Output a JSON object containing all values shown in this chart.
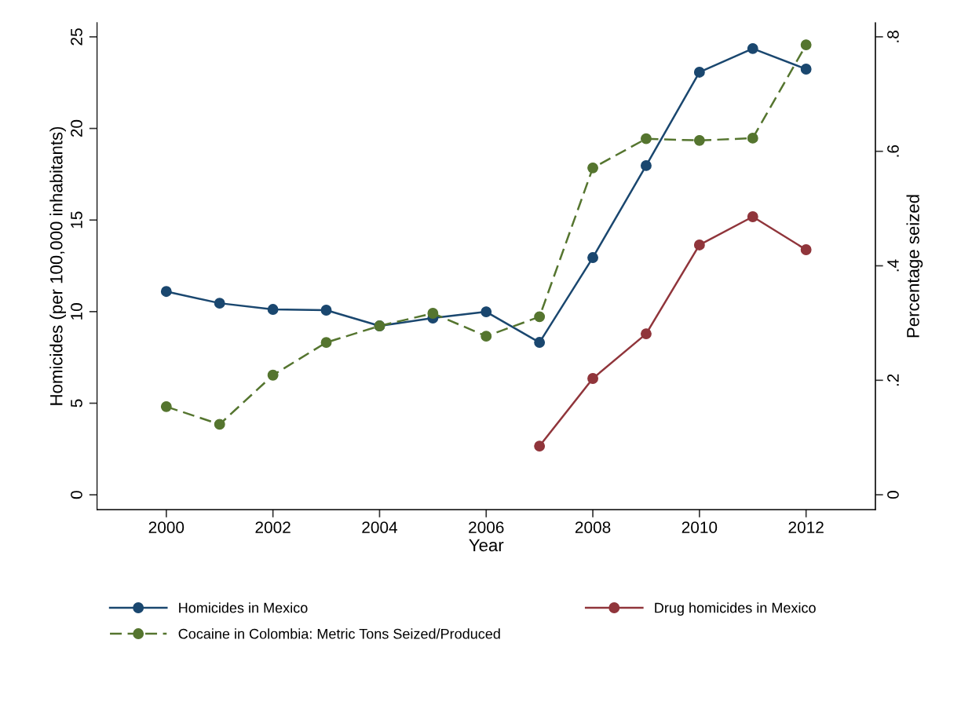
{
  "chart_data": {
    "type": "line",
    "xlabel": "Year",
    "ylabel": "Homicides (per 100,000 inhabitants)",
    "y2label": "Percentage seized",
    "xlim": [
      1998.7,
      2013.3
    ],
    "xticks": [
      2000,
      2002,
      2004,
      2006,
      2008,
      2010,
      2012
    ],
    "ylim": [
      -0.81,
      25.77
    ],
    "yticks": [
      0,
      5,
      10,
      15,
      20,
      25
    ],
    "y2lim": [
      -0.026,
      0.8246
    ],
    "y2ticks": [
      {
        "value": 0,
        "label": "0"
      },
      {
        "value": 0.2,
        "label": ".2"
      },
      {
        "value": 0.4,
        "label": ".4"
      },
      {
        "value": 0.6,
        "label": ".6"
      },
      {
        "value": 0.8,
        "label": ".8"
      }
    ],
    "legend": "bottom",
    "marker": "circle",
    "grid": false,
    "series": [
      {
        "name": "Homicides in Mexico",
        "color": "#1a476f",
        "line_style": "solid",
        "x": [
          2000,
          2001,
          2002,
          2003,
          2004,
          2005,
          2006,
          2007,
          2008,
          2009,
          2010,
          2011,
          2012
        ],
        "values": [
          11.1,
          10.46,
          10.12,
          10.08,
          9.22,
          9.65,
          9.99,
          8.32,
          12.95,
          17.97,
          23.07,
          24.36,
          23.24
        ]
      },
      {
        "name": "Drug homicides in Mexico",
        "color": "#90353b",
        "line_style": "solid",
        "x": [
          2007,
          2008,
          2009,
          2010,
          2011,
          2012
        ],
        "values": [
          2.66,
          6.35,
          8.79,
          13.64,
          15.18,
          13.38
        ]
      },
      {
        "name": "Cocaine in Colombia: Metric Tons Seized/Produced",
        "color": "#55752f",
        "line_style": "dashed",
        "axis": "y2",
        "x": [
          2000,
          2001,
          2002,
          2003,
          2004,
          2005,
          2006,
          2007,
          2008,
          2009,
          2010,
          2011,
          2012
        ],
        "values": [
          0.154,
          0.123,
          0.209,
          0.266,
          0.295,
          0.317,
          0.277,
          0.311,
          0.571,
          0.622,
          0.619,
          0.623,
          0.786
        ]
      }
    ]
  }
}
